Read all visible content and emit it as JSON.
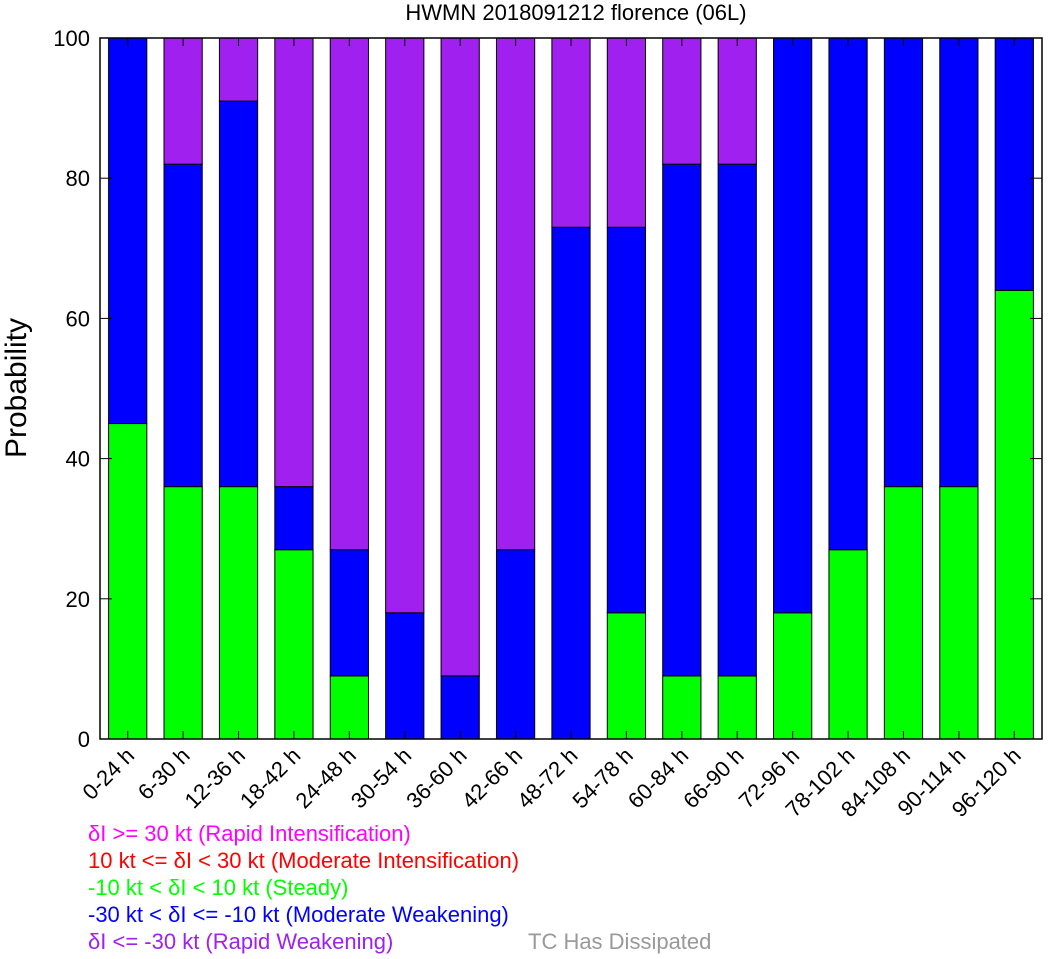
{
  "chart_data": {
    "type": "bar",
    "stacked": true,
    "title": "HWMN 2018091212 florence (06L)",
    "ylabel": "Probability",
    "xlabel": "",
    "ylim": [
      0,
      100
    ],
    "yticks": [
      0,
      20,
      40,
      60,
      80,
      100
    ],
    "categories": [
      "0-24 h",
      "6-30 h",
      "12-36 h",
      "18-42 h",
      "24-48 h",
      "30-54 h",
      "36-60 h",
      "42-66 h",
      "48-72 h",
      "54-78 h",
      "60-84 h",
      "66-90 h",
      "72-96 h",
      "78-102 h",
      "84-108 h",
      "90-114 h",
      "96-120 h"
    ],
    "series": [
      {
        "name": "-10 kt < δI < 10 kt (Steady)",
        "color": "#00ff00",
        "values": [
          45,
          36,
          36,
          27,
          9,
          0,
          0,
          0,
          0,
          18,
          9,
          9,
          18,
          27,
          36,
          36,
          64
        ]
      },
      {
        "name": "-30 kt < δI <= -10 kt (Moderate Weakening)",
        "color": "#0000ff",
        "values": [
          55,
          46,
          55,
          9,
          18,
          18,
          9,
          27,
          73,
          55,
          73,
          73,
          82,
          73,
          64,
          64,
          36
        ]
      },
      {
        "name": "δI <= -30 kt (Rapid Weakening)",
        "color": "#a020f0",
        "values": [
          0,
          18,
          9,
          64,
          73,
          82,
          91,
          73,
          27,
          27,
          18,
          18,
          0,
          0,
          0,
          0,
          0
        ]
      }
    ],
    "legend": {
      "placement": "bottom-left",
      "entries": [
        {
          "text": "δI >= 30 kt (Rapid Intensification)",
          "color": "#ff00ff"
        },
        {
          "text": "10 kt <= δI < 30 kt (Moderate Intensification)",
          "color": "#ff0000"
        },
        {
          "text": "-10 kt < δI < 10 kt (Steady)",
          "color": "#00ff00"
        },
        {
          "text": "-30 kt < δI <= -10 kt (Moderate Weakening)",
          "color": "#0000ff"
        },
        {
          "text": "δI <= -30 kt (Rapid Weakening)",
          "color": "#a020f0"
        }
      ],
      "dissipated": {
        "text": "TC Has Dissipated",
        "color": "#999999"
      }
    },
    "grid": false
  }
}
